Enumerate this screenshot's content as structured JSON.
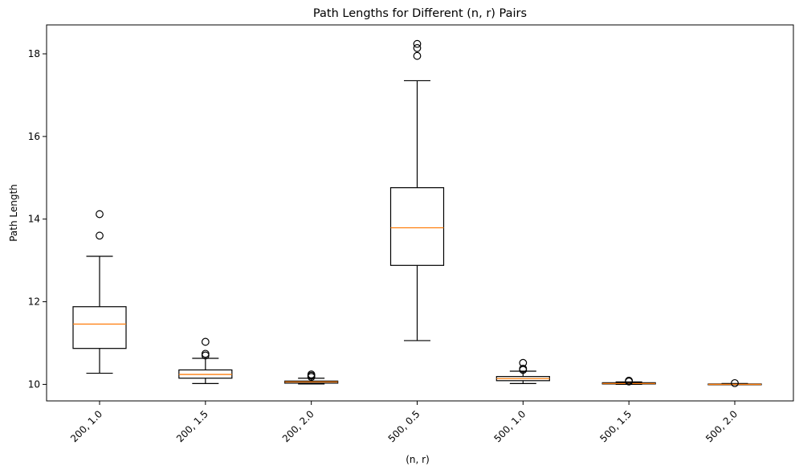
{
  "chart_data": {
    "type": "box",
    "title": "Path Lengths for Different (n, r) Pairs",
    "xlabel": "(n, r)",
    "ylabel": "Path Length",
    "ylim": [
      9.6,
      18.7
    ],
    "yticks": [
      10,
      12,
      14,
      16,
      18
    ],
    "grid": false,
    "categories": [
      "200, 1.0",
      "200, 1.5",
      "200, 2.0",
      "500, 0.5",
      "500, 1.0",
      "500, 1.5",
      "500, 2.0"
    ],
    "boxes": [
      {
        "whisker_low": 10.27,
        "q1": 10.87,
        "median": 11.46,
        "q3": 11.88,
        "whisker_high": 13.1,
        "outliers": [
          13.6,
          14.12
        ]
      },
      {
        "whisker_low": 10.02,
        "q1": 10.15,
        "median": 10.24,
        "q3": 10.35,
        "whisker_high": 10.63,
        "outliers": [
          10.7,
          10.74,
          11.03
        ]
      },
      {
        "whisker_low": 10.01,
        "q1": 10.03,
        "median": 10.06,
        "q3": 10.08,
        "whisker_high": 10.15,
        "outliers": [
          10.18,
          10.21,
          10.24
        ]
      },
      {
        "whisker_low": 11.06,
        "q1": 12.88,
        "median": 13.79,
        "q3": 14.76,
        "whisker_high": 17.35,
        "outliers": [
          17.95,
          18.14,
          18.24
        ]
      },
      {
        "whisker_low": 10.02,
        "q1": 10.09,
        "median": 10.14,
        "q3": 10.19,
        "whisker_high": 10.32,
        "outliers": [
          10.35,
          10.38,
          10.52
        ]
      },
      {
        "whisker_low": 10.0,
        "q1": 10.01,
        "median": 10.02,
        "q3": 10.04,
        "whisker_high": 10.06,
        "outliers": [
          10.07,
          10.09
        ]
      },
      {
        "whisker_low": 10.0,
        "q1": 10.0,
        "median": 10.0,
        "q3": 10.01,
        "whisker_high": 10.02,
        "outliers": [
          10.03
        ]
      }
    ],
    "colors": {
      "box": "#000000",
      "median": "#ff7f0e",
      "outlier": "#000000"
    }
  }
}
